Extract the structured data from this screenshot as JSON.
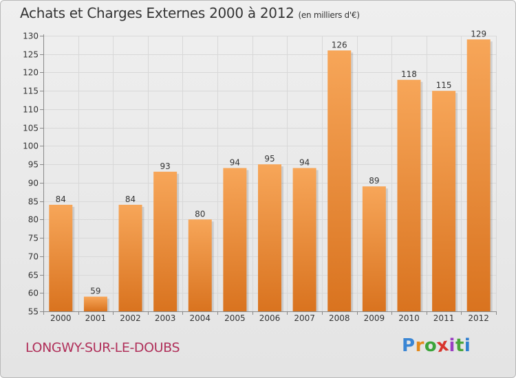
{
  "header": {
    "title": "Achats et Charges Externes 2000 à 2012",
    "subtitle": "(en milliers d'€)"
  },
  "footer": {
    "place_name": "LONGWY-SUR-LE-DOUBS",
    "logo": {
      "letters": [
        "P",
        "r",
        "o",
        "x",
        "i",
        "t",
        "i"
      ],
      "colors": [
        "#3a86d4",
        "#e3891b",
        "#3ba43a",
        "#d8342c",
        "#9b3fc2",
        "#4aa53a",
        "#2f7fd0"
      ]
    }
  },
  "chart_data": {
    "type": "bar",
    "title": "Achats et Charges Externes 2000 à 2012",
    "subtitle": "(en milliers d'€)",
    "categories": [
      "2000",
      "2001",
      "2002",
      "2003",
      "2004",
      "2005",
      "2006",
      "2007",
      "2008",
      "2009",
      "2010",
      "2011",
      "2012"
    ],
    "values": [
      84,
      59,
      84,
      93,
      80,
      94,
      95,
      94,
      126,
      89,
      118,
      115,
      129
    ],
    "ylim": [
      55,
      130
    ],
    "yticks": [
      55,
      60,
      65,
      70,
      75,
      80,
      85,
      90,
      95,
      100,
      105,
      110,
      115,
      120,
      125,
      130
    ],
    "grid": true,
    "colors": {
      "bar_top": "#f7a659",
      "bar_bottom": "#d9731f",
      "grid": "#d8d8d8"
    }
  }
}
